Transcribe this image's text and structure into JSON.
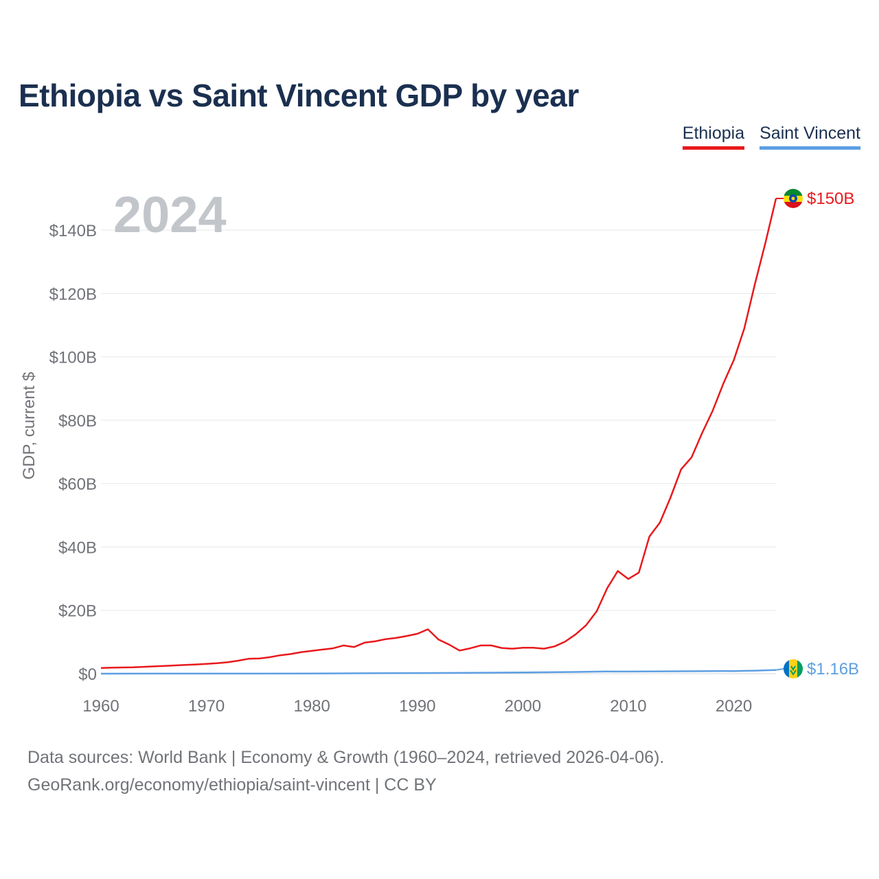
{
  "title": "Ethiopia vs Saint Vincent GDP by year",
  "legend": [
    {
      "label": "Ethiopia",
      "color": "#e8191c"
    },
    {
      "label": "Saint Vincent",
      "color": "#5d9fe3"
    }
  ],
  "year_overlay": "2024",
  "footer": {
    "line1": "Data sources: World Bank | Economy & Growth (1960–2024, retrieved 2026-04-06).",
    "line2": "GeoRank.org/economy/ethiopia/saint-vincent | CC BY"
  },
  "chart_data": {
    "type": "line",
    "title": "Ethiopia vs Saint Vincent GDP by year",
    "xlabel": "",
    "ylabel": "GDP, current $",
    "xlim": [
      1960,
      2024
    ],
    "ylim": [
      0,
      150
    ],
    "y_unit": "billions USD",
    "grid": true,
    "x_ticks": [
      1960,
      1970,
      1980,
      1990,
      2000,
      2010,
      2020
    ],
    "x_tick_labels": [
      "1960",
      "1970",
      "1980",
      "1990",
      "2000",
      "2010",
      "2020"
    ],
    "y_ticks": [
      0,
      20,
      40,
      60,
      80,
      100,
      120,
      140
    ],
    "y_tick_labels": [
      "$0",
      "$20B",
      "$40B",
      "$60B",
      "$80B",
      "$100B",
      "$120B",
      "$140B"
    ],
    "series": [
      {
        "name": "Ethiopia",
        "color": "#e8191c",
        "end_label": "$150B",
        "points": [
          [
            1960,
            1.8
          ],
          [
            1961,
            1.9
          ],
          [
            1962,
            1.95
          ],
          [
            1963,
            2.0
          ],
          [
            1964,
            2.15
          ],
          [
            1965,
            2.3
          ],
          [
            1966,
            2.45
          ],
          [
            1967,
            2.6
          ],
          [
            1968,
            2.75
          ],
          [
            1969,
            2.9
          ],
          [
            1970,
            3.1
          ],
          [
            1971,
            3.3
          ],
          [
            1972,
            3.6
          ],
          [
            1973,
            4.1
          ],
          [
            1974,
            4.7
          ],
          [
            1975,
            4.8
          ],
          [
            1976,
            5.2
          ],
          [
            1977,
            5.8
          ],
          [
            1978,
            6.2
          ],
          [
            1979,
            6.8
          ],
          [
            1980,
            7.2
          ],
          [
            1981,
            7.6
          ],
          [
            1982,
            8.0
          ],
          [
            1983,
            8.9
          ],
          [
            1984,
            8.4
          ],
          [
            1985,
            9.8
          ],
          [
            1986,
            10.2
          ],
          [
            1987,
            10.9
          ],
          [
            1988,
            11.3
          ],
          [
            1989,
            11.9
          ],
          [
            1990,
            12.6
          ],
          [
            1991,
            14.0
          ],
          [
            1992,
            10.8
          ],
          [
            1993,
            9.2
          ],
          [
            1994,
            7.3
          ],
          [
            1995,
            8.0
          ],
          [
            1996,
            8.9
          ],
          [
            1997,
            8.9
          ],
          [
            1998,
            8.1
          ],
          [
            1999,
            7.9
          ],
          [
            2000,
            8.2
          ],
          [
            2001,
            8.2
          ],
          [
            2002,
            7.9
          ],
          [
            2003,
            8.6
          ],
          [
            2004,
            10.1
          ],
          [
            2005,
            12.4
          ],
          [
            2006,
            15.3
          ],
          [
            2007,
            19.7
          ],
          [
            2008,
            27.0
          ],
          [
            2009,
            32.4
          ],
          [
            2010,
            29.9
          ],
          [
            2011,
            31.9
          ],
          [
            2012,
            43.3
          ],
          [
            2013,
            47.7
          ],
          [
            2014,
            55.6
          ],
          [
            2015,
            64.5
          ],
          [
            2016,
            68.3
          ],
          [
            2017,
            76.0
          ],
          [
            2018,
            83.0
          ],
          [
            2019,
            91.5
          ],
          [
            2020,
            99.0
          ],
          [
            2021,
            109.0
          ],
          [
            2022,
            123.0
          ],
          [
            2023,
            136.0
          ],
          [
            2024,
            150.0
          ]
        ]
      },
      {
        "name": "Saint Vincent",
        "color": "#5d9fe3",
        "end_label": "$1.16B",
        "points": [
          [
            1960,
            0.01
          ],
          [
            1965,
            0.02
          ],
          [
            1970,
            0.02
          ],
          [
            1975,
            0.03
          ],
          [
            1980,
            0.05
          ],
          [
            1985,
            0.12
          ],
          [
            1990,
            0.19
          ],
          [
            1995,
            0.28
          ],
          [
            2000,
            0.4
          ],
          [
            2005,
            0.55
          ],
          [
            2008,
            0.69
          ],
          [
            2010,
            0.68
          ],
          [
            2015,
            0.76
          ],
          [
            2019,
            0.85
          ],
          [
            2020,
            0.81
          ],
          [
            2021,
            0.88
          ],
          [
            2022,
            0.95
          ],
          [
            2023,
            1.06
          ],
          [
            2024,
            1.16
          ]
        ]
      }
    ]
  }
}
